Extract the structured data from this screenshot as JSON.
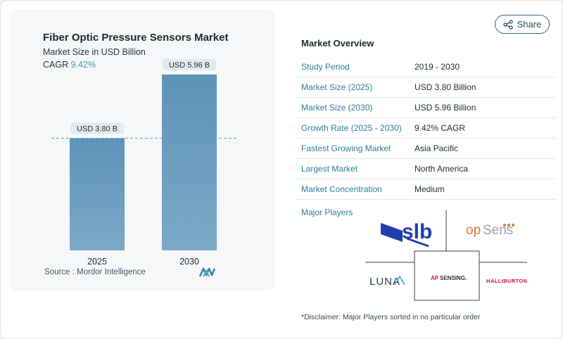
{
  "share": {
    "label": "Share",
    "icon": "share-icon"
  },
  "chart_data": {
    "type": "bar",
    "title": "Fiber Optic Pressure Sensors Market",
    "subtitle": "Market Size in USD Billion",
    "cagr_label": "CAGR",
    "cagr_value": "9.42%",
    "categories": [
      "2025",
      "2030"
    ],
    "values": [
      3.8,
      5.96
    ],
    "data_labels": [
      "USD 3.80 B",
      "USD 5.96 B"
    ],
    "ylim": [
      0,
      6.6
    ],
    "reference_line_value": 3.8,
    "bar_color_top": "#5e93b8",
    "bar_color_bottom": "#7ba8c7",
    "xlabel": "",
    "ylabel": ""
  },
  "source": {
    "text": "Source :  Mordor Intelligence",
    "logo_icon": "mordor-intelligence-logo"
  },
  "overview": {
    "title": "Market Overview",
    "rows": [
      {
        "key": "Study Period",
        "value": "2019 - 2030"
      },
      {
        "key": "Market Size (2025)",
        "value": "USD 3.80 Billion"
      },
      {
        "key": "Market Size (2030)",
        "value": "USD 5.96 Billion"
      },
      {
        "key": "Growth Rate (2025 - 2030)",
        "value": "9.42% CAGR"
      },
      {
        "key": "Fastest Growing Market",
        "value": "Asia Pacific"
      },
      {
        "key": "Largest Market",
        "value": "North America"
      },
      {
        "key": "Market Concentration",
        "value": "Medium"
      }
    ]
  },
  "players": {
    "label": "Major Players",
    "logos": [
      {
        "name": "slb",
        "text": "slb"
      },
      {
        "name": "opsens",
        "text_a": "op",
        "text_b": "Sens"
      },
      {
        "name": "luna",
        "text": "LUNA"
      },
      {
        "name": "apsensing",
        "text_a": "AP",
        "text_b": "SENSING."
      },
      {
        "name": "halliburton",
        "text": "HALLIBURTON"
      }
    ]
  },
  "disclaimer": "*Disclaimer: Major Players sorted in no particular order",
  "colors": {
    "accent": "#2d7ea0",
    "bar": "#6b9cc0",
    "label_bg": "#e6e9ec"
  }
}
